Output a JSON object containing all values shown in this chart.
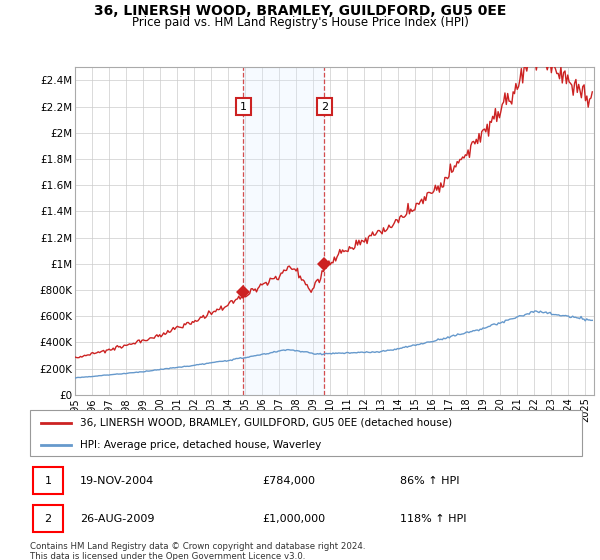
{
  "title1": "36, LINERSH WOOD, BRAMLEY, GUILDFORD, GU5 0EE",
  "title2": "Price paid vs. HM Land Registry's House Price Index (HPI)",
  "ylabel_ticks": [
    "£0",
    "£200K",
    "£400K",
    "£600K",
    "£800K",
    "£1M",
    "£1.2M",
    "£1.4M",
    "£1.6M",
    "£1.8M",
    "£2M",
    "£2.2M",
    "£2.4M"
  ],
  "ylabel_values": [
    0,
    200000,
    400000,
    600000,
    800000,
    1000000,
    1200000,
    1400000,
    1600000,
    1800000,
    2000000,
    2200000,
    2400000
  ],
  "ylim": [
    0,
    2500000
  ],
  "xlim_start": 1995.0,
  "xlim_end": 2025.5,
  "sale1_x": 2004.89,
  "sale1_y": 784000,
  "sale2_x": 2009.65,
  "sale2_y": 1000000,
  "shading_x1": 2004.89,
  "shading_x2": 2009.65,
  "legend_line1": "36, LINERSH WOOD, BRAMLEY, GUILDFORD, GU5 0EE (detached house)",
  "legend_line2": "HPI: Average price, detached house, Waverley",
  "annotation1_date": "19-NOV-2004",
  "annotation1_price": "£784,000",
  "annotation1_hpi": "86% ↑ HPI",
  "annotation2_date": "26-AUG-2009",
  "annotation2_price": "£1,000,000",
  "annotation2_hpi": "118% ↑ HPI",
  "footer": "Contains HM Land Registry data © Crown copyright and database right 2024.\nThis data is licensed under the Open Government Licence v3.0.",
  "red_color": "#cc2222",
  "blue_color": "#6699cc",
  "shading_color": "#ddeeff",
  "grid_color": "#cccccc"
}
